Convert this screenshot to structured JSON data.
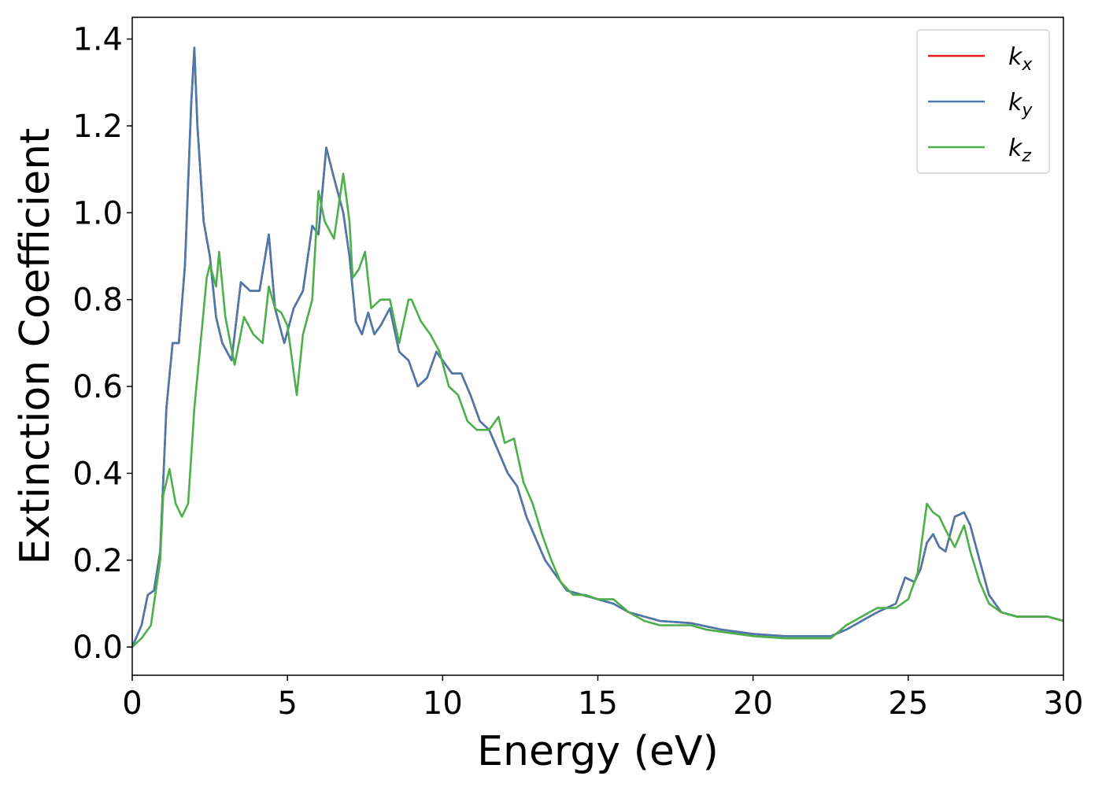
{
  "chart_data": {
    "type": "line",
    "xlabel": "Energy (eV)",
    "ylabel": "Extinction Coefficient",
    "xlim": [
      0,
      30
    ],
    "ylim": [
      -0.065,
      1.45
    ],
    "xticks": [
      0,
      5,
      10,
      15,
      20,
      25,
      30
    ],
    "yticks": [
      0.0,
      0.2,
      0.4,
      0.6,
      0.8,
      1.0,
      1.2,
      1.4
    ],
    "xtick_labels": [
      "0",
      "5",
      "10",
      "15",
      "20",
      "25",
      "30"
    ],
    "ytick_labels": [
      "0.0",
      "0.2",
      "0.4",
      "0.6",
      "0.8",
      "1.0",
      "1.2",
      "1.4"
    ],
    "grid": false,
    "legend_position": "top-right",
    "series": [
      {
        "name": "k_x",
        "label_base": "k",
        "label_sub": "x",
        "color": "#e41a1c",
        "x": [
          0,
          0.3,
          0.5,
          0.7,
          0.9,
          1.1,
          1.3,
          1.5,
          1.7,
          1.9,
          2.0,
          2.1,
          2.3,
          2.5,
          2.7,
          2.9,
          3.2,
          3.5,
          3.8,
          4.1,
          4.4,
          4.6,
          4.9,
          5.2,
          5.5,
          5.8,
          6.0,
          6.25,
          6.5,
          6.8,
          7.0,
          7.2,
          7.4,
          7.6,
          7.8,
          8.0,
          8.3,
          8.6,
          8.9,
          9.2,
          9.5,
          9.8,
          10.0,
          10.3,
          10.6,
          10.9,
          11.2,
          11.5,
          11.8,
          12.1,
          12.4,
          12.7,
          13.0,
          13.3,
          13.7,
          14.0,
          14.5,
          15.0,
          15.5,
          16.0,
          17.0,
          18.0,
          19.0,
          20.0,
          21.0,
          22.0,
          22.5,
          23.0,
          23.5,
          24.0,
          24.3,
          24.6,
          24.9,
          25.2,
          25.4,
          25.6,
          25.8,
          26.0,
          26.2,
          26.5,
          26.8,
          27.0,
          27.3,
          27.6,
          28.0,
          28.5,
          29.0,
          29.5,
          30.0
        ],
        "y": [
          0.0,
          0.05,
          0.12,
          0.13,
          0.22,
          0.55,
          0.7,
          0.7,
          0.88,
          1.25,
          1.38,
          1.2,
          0.98,
          0.9,
          0.76,
          0.7,
          0.66,
          0.84,
          0.82,
          0.82,
          0.95,
          0.78,
          0.7,
          0.78,
          0.82,
          0.97,
          0.95,
          1.15,
          1.08,
          1.0,
          0.9,
          0.75,
          0.72,
          0.77,
          0.72,
          0.74,
          0.78,
          0.68,
          0.66,
          0.6,
          0.62,
          0.68,
          0.66,
          0.63,
          0.63,
          0.58,
          0.52,
          0.5,
          0.45,
          0.4,
          0.37,
          0.3,
          0.25,
          0.2,
          0.16,
          0.13,
          0.12,
          0.11,
          0.1,
          0.08,
          0.06,
          0.055,
          0.04,
          0.03,
          0.025,
          0.025,
          0.025,
          0.04,
          0.06,
          0.08,
          0.09,
          0.1,
          0.16,
          0.15,
          0.18,
          0.24,
          0.26,
          0.23,
          0.22,
          0.3,
          0.31,
          0.28,
          0.2,
          0.12,
          0.08,
          0.07,
          0.07,
          0.07,
          0.06
        ]
      },
      {
        "name": "k_y",
        "label_base": "k",
        "label_sub": "y",
        "color": "#4a7aac",
        "x": [
          0,
          0.3,
          0.5,
          0.7,
          0.9,
          1.1,
          1.3,
          1.5,
          1.7,
          1.9,
          2.0,
          2.1,
          2.3,
          2.5,
          2.7,
          2.9,
          3.2,
          3.5,
          3.8,
          4.1,
          4.4,
          4.6,
          4.9,
          5.2,
          5.5,
          5.8,
          6.0,
          6.25,
          6.5,
          6.8,
          7.0,
          7.2,
          7.4,
          7.6,
          7.8,
          8.0,
          8.3,
          8.6,
          8.9,
          9.2,
          9.5,
          9.8,
          10.0,
          10.3,
          10.6,
          10.9,
          11.2,
          11.5,
          11.8,
          12.1,
          12.4,
          12.7,
          13.0,
          13.3,
          13.7,
          14.0,
          14.5,
          15.0,
          15.5,
          16.0,
          17.0,
          18.0,
          19.0,
          20.0,
          21.0,
          22.0,
          22.5,
          23.0,
          23.5,
          24.0,
          24.3,
          24.6,
          24.9,
          25.2,
          25.4,
          25.6,
          25.8,
          26.0,
          26.2,
          26.5,
          26.8,
          27.0,
          27.3,
          27.6,
          28.0,
          28.5,
          29.0,
          29.5,
          30.0
        ],
        "y": [
          0.0,
          0.05,
          0.12,
          0.13,
          0.22,
          0.55,
          0.7,
          0.7,
          0.88,
          1.25,
          1.38,
          1.2,
          0.98,
          0.9,
          0.76,
          0.7,
          0.66,
          0.84,
          0.82,
          0.82,
          0.95,
          0.78,
          0.7,
          0.78,
          0.82,
          0.97,
          0.95,
          1.15,
          1.08,
          1.0,
          0.9,
          0.75,
          0.72,
          0.77,
          0.72,
          0.74,
          0.78,
          0.68,
          0.66,
          0.6,
          0.62,
          0.68,
          0.66,
          0.63,
          0.63,
          0.58,
          0.52,
          0.5,
          0.45,
          0.4,
          0.37,
          0.3,
          0.25,
          0.2,
          0.16,
          0.13,
          0.12,
          0.11,
          0.1,
          0.08,
          0.06,
          0.055,
          0.04,
          0.03,
          0.025,
          0.025,
          0.025,
          0.04,
          0.06,
          0.08,
          0.09,
          0.1,
          0.16,
          0.15,
          0.18,
          0.24,
          0.26,
          0.23,
          0.22,
          0.3,
          0.31,
          0.28,
          0.2,
          0.12,
          0.08,
          0.07,
          0.07,
          0.07,
          0.06
        ]
      },
      {
        "name": "k_z",
        "label_base": "k",
        "label_sub": "z",
        "color": "#4daf4a",
        "x": [
          0,
          0.3,
          0.6,
          0.9,
          1.0,
          1.2,
          1.4,
          1.6,
          1.8,
          2.0,
          2.2,
          2.4,
          2.5,
          2.7,
          2.8,
          3.0,
          3.3,
          3.6,
          3.9,
          4.2,
          4.4,
          4.6,
          4.8,
          5.0,
          5.3,
          5.5,
          5.8,
          6.0,
          6.2,
          6.5,
          6.8,
          7.0,
          7.1,
          7.3,
          7.5,
          7.7,
          8.0,
          8.3,
          8.6,
          8.9,
          9.0,
          9.3,
          9.6,
          9.9,
          10.2,
          10.5,
          10.8,
          11.1,
          11.5,
          11.8,
          12.0,
          12.3,
          12.6,
          12.9,
          13.2,
          13.5,
          13.8,
          14.2,
          14.6,
          15.0,
          15.5,
          16.0,
          16.5,
          17.0,
          17.5,
          18.0,
          18.5,
          19.0,
          20.0,
          21.0,
          22.0,
          22.5,
          23.0,
          23.5,
          24.0,
          24.3,
          24.6,
          25.0,
          25.3,
          25.6,
          25.8,
          26.0,
          26.2,
          26.5,
          26.8,
          27.0,
          27.3,
          27.6,
          28.0,
          28.5,
          29.0,
          29.5,
          30.0
        ],
        "y": [
          0.0,
          0.02,
          0.05,
          0.2,
          0.35,
          0.41,
          0.33,
          0.3,
          0.33,
          0.55,
          0.7,
          0.85,
          0.88,
          0.83,
          0.91,
          0.76,
          0.65,
          0.76,
          0.72,
          0.7,
          0.83,
          0.78,
          0.77,
          0.74,
          0.58,
          0.72,
          0.8,
          1.05,
          0.98,
          0.94,
          1.09,
          0.98,
          0.85,
          0.87,
          0.91,
          0.78,
          0.8,
          0.8,
          0.7,
          0.8,
          0.8,
          0.75,
          0.72,
          0.68,
          0.6,
          0.58,
          0.52,
          0.5,
          0.5,
          0.53,
          0.47,
          0.48,
          0.38,
          0.33,
          0.26,
          0.2,
          0.15,
          0.12,
          0.12,
          0.11,
          0.11,
          0.08,
          0.06,
          0.05,
          0.05,
          0.05,
          0.04,
          0.035,
          0.025,
          0.02,
          0.02,
          0.02,
          0.05,
          0.07,
          0.09,
          0.09,
          0.09,
          0.11,
          0.17,
          0.33,
          0.31,
          0.3,
          0.27,
          0.23,
          0.28,
          0.22,
          0.15,
          0.1,
          0.08,
          0.07,
          0.07,
          0.07,
          0.06
        ]
      }
    ]
  }
}
